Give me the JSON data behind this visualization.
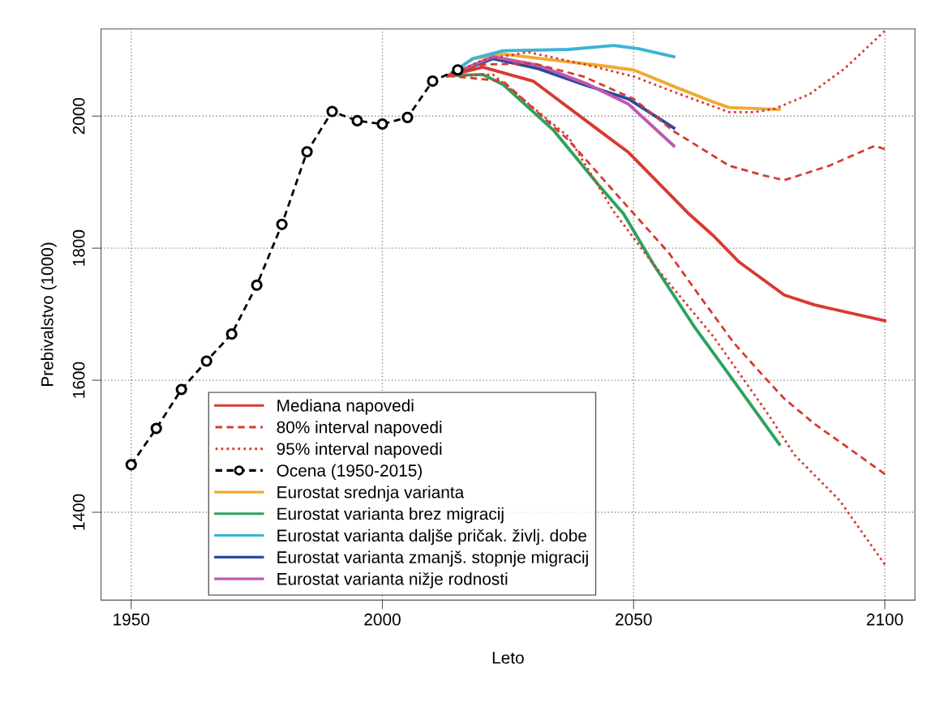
{
  "chart_data": {
    "type": "line",
    "xlabel": "Leto",
    "ylabel": "Prebivalstvo (1000)",
    "xlim": [
      1944,
      2106
    ],
    "xticks": [
      1950,
      2000,
      2050,
      2100
    ],
    "ylim": [
      1267,
      2132
    ],
    "yticks": [
      1400,
      1600,
      1800,
      2000
    ],
    "grid": true,
    "legend": "bottom",
    "series": [
      {
        "name": "Mediana napovedi",
        "color": "#d73a31",
        "line_style": "solid",
        "marker": "none",
        "x": [
          2013,
          2020,
          2030,
          2043,
          2049,
          2061,
          2066,
          2071,
          2080,
          2086,
          2100
        ],
        "values": [
          2061,
          2074,
          2053,
          1979,
          1945,
          1852,
          1818,
          1779,
          1729,
          1714,
          1690
        ]
      },
      {
        "name": "80% interval napovedi",
        "color": "#d73a31",
        "line_style": "dashed",
        "marker": "none",
        "x": [
          2013,
          2020,
          2030,
          2040,
          2050,
          2058,
          2069,
          2076,
          2080,
          2089,
          2098,
          2100
        ],
        "values": [
          2061,
          2078,
          2080,
          2060,
          2026,
          1977,
          1925,
          1910,
          1903,
          1925,
          1955,
          1950
        ]
      },
      {
        "color": "#d73a31",
        "line_style": "dashed",
        "marker": "none",
        "x": [
          2013,
          2024,
          2037,
          2049,
          2057,
          2063,
          2070,
          2076,
          2080,
          2086,
          2093,
          2100
        ],
        "values": [
          2061,
          2053,
          1964,
          1861,
          1793,
          1729,
          1656,
          1605,
          1572,
          1534,
          1496,
          1458
        ]
      },
      {
        "name": "95% interval napovedi",
        "color": "#d73a31",
        "line_style": "dotted",
        "marker": "none",
        "x": [
          2013,
          2020,
          2029,
          2041,
          2050,
          2060,
          2069,
          2074,
          2078,
          2085,
          2092,
          2100
        ],
        "values": [
          2061,
          2085,
          2097,
          2077,
          2060,
          2031,
          2006,
          2006,
          2011,
          2033,
          2072,
          2129
        ]
      },
      {
        "color": "#d73a31",
        "line_style": "dotted",
        "marker": "none",
        "x": [
          2013,
          2022,
          2037,
          2046,
          2054,
          2066,
          2077,
          2082,
          2091,
          2100
        ],
        "values": [
          2061,
          2063,
          1969,
          1856,
          1775,
          1665,
          1546,
          1487,
          1418,
          1321
        ]
      },
      {
        "name": "Ocena (1950-2015)",
        "color": "#000000",
        "line_style": "dashed",
        "marker": "circle",
        "x": [
          1950,
          1955,
          1960,
          1965,
          1970,
          1975,
          1980,
          1985,
          1990,
          1995,
          2000,
          2005,
          2010,
          2015
        ],
        "values": [
          1472,
          1527,
          1586,
          1629,
          1670,
          1744,
          1836,
          1946,
          2007,
          1993,
          1988,
          1998,
          2053,
          2070
        ]
      },
      {
        "name": "Eurostat srednja varianta",
        "color": "#eeaa33",
        "line_style": "solid",
        "marker": "none",
        "x": [
          2013,
          2018,
          2024,
          2037,
          2043,
          2050,
          2058,
          2066,
          2069,
          2079
        ],
        "values": [
          2061,
          2087,
          2094,
          2082,
          2077,
          2070,
          2045,
          2021,
          2013,
          2010
        ]
      },
      {
        "name": "Eurostat varianta brez migracij",
        "color": "#2ca25f",
        "line_style": "solid",
        "marker": "none",
        "x": [
          2013,
          2020,
          2024,
          2034,
          2043,
          2048,
          2054,
          2062,
          2070,
          2079
        ],
        "values": [
          2061,
          2063,
          2048,
          1979,
          1896,
          1852,
          1775,
          1682,
          1598,
          1503
        ]
      },
      {
        "name": "Eurostat varianta daljše pričak. življ. dobe",
        "color": "#3ab4d4",
        "line_style": "solid",
        "marker": "none",
        "x": [
          2013,
          2018,
          2024,
          2037,
          2046,
          2051,
          2058
        ],
        "values": [
          2061,
          2087,
          2099,
          2101,
          2107,
          2102,
          2090
        ]
      },
      {
        "name": "Eurostat varianta zmanjš. stopnje migracij",
        "color": "#2c4aa0",
        "line_style": "solid",
        "marker": "none",
        "x": [
          2013,
          2022,
          2031,
          2040,
          2049,
          2058
        ],
        "values": [
          2061,
          2087,
          2072,
          2048,
          2026,
          1982
        ]
      },
      {
        "name": "Eurostat varianta nižje rodnosti",
        "color": "#c058b0",
        "line_style": "solid",
        "marker": "none",
        "x": [
          2013,
          2022,
          2031,
          2041,
          2049,
          2058
        ],
        "values": [
          2061,
          2090,
          2077,
          2048,
          2018,
          1955
        ]
      }
    ]
  }
}
